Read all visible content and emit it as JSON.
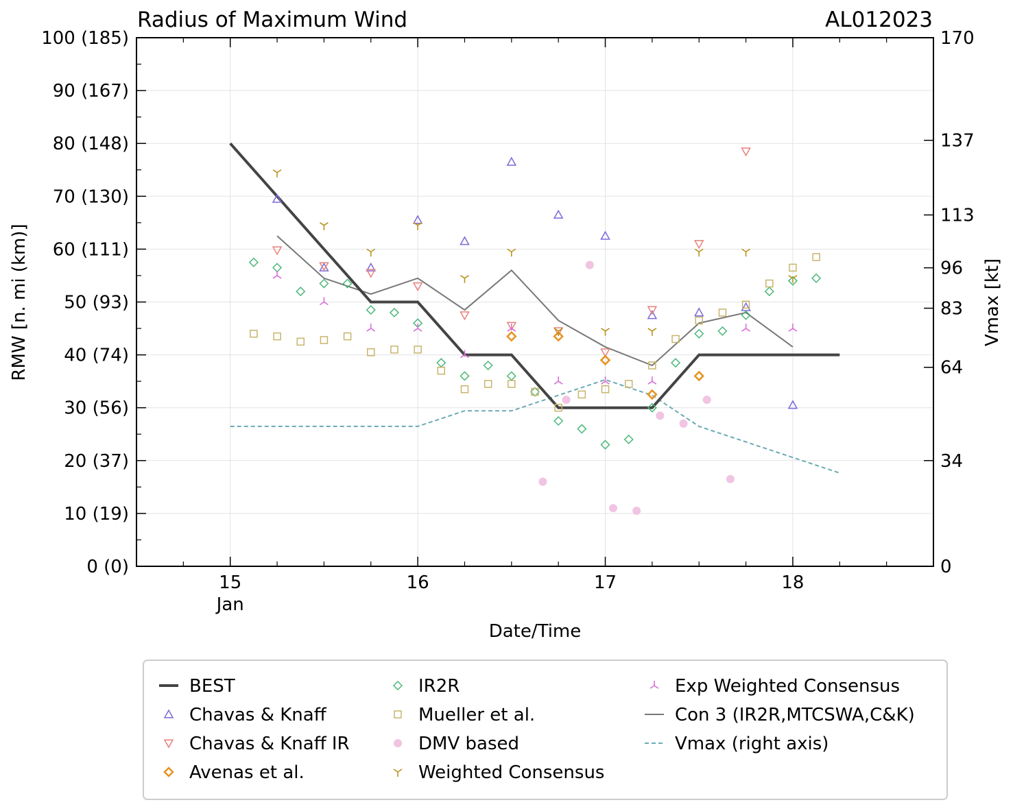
{
  "chart_data": {
    "type": "scatter",
    "title": "Radius of Maximum Wind",
    "storm_id": "AL012023",
    "xlabel": "Date/Time",
    "ylabel": "RMW [n. mi (km)]",
    "ylabel_right": "Vmax [kt]",
    "xlim": [
      14.5,
      18.75
    ],
    "ylim": [
      0,
      100
    ],
    "x_ticks": [
      {
        "value": 15,
        "label": "15",
        "sublabel": "Jan"
      },
      {
        "value": 16,
        "label": "16",
        "sublabel": ""
      },
      {
        "value": 17,
        "label": "17",
        "sublabel": ""
      },
      {
        "value": 18,
        "label": "18",
        "sublabel": ""
      }
    ],
    "y_ticks": [
      {
        "value": 0,
        "label": "0 (0)"
      },
      {
        "value": 10,
        "label": "10 (19)"
      },
      {
        "value": 20,
        "label": "20 (37)"
      },
      {
        "value": 30,
        "label": "30 (56)"
      },
      {
        "value": 40,
        "label": "40 (74)"
      },
      {
        "value": 50,
        "label": "50 (93)"
      },
      {
        "value": 60,
        "label": "60 (111)"
      },
      {
        "value": 70,
        "label": "70 (130)"
      },
      {
        "value": 80,
        "label": "80 (148)"
      },
      {
        "value": 90,
        "label": "90 (167)"
      },
      {
        "value": 100,
        "label": "100 (185)"
      }
    ],
    "right_ticks": [
      {
        "value": 0,
        "label": "0"
      },
      {
        "value": 34,
        "label": "34"
      },
      {
        "value": 64,
        "label": "64"
      },
      {
        "value": 83,
        "label": "83"
      },
      {
        "value": 96,
        "label": "96"
      },
      {
        "value": 113,
        "label": "113"
      },
      {
        "value": 137,
        "label": "137"
      },
      {
        "value": 170,
        "label": "170"
      }
    ],
    "right_lim": [
      0,
      170
    ],
    "grid": true,
    "legend_position": "bottom",
    "series": [
      {
        "name": "BEST",
        "kind": "line",
        "color": "#444444",
        "style": "solid",
        "width": 4,
        "x": [
          15.0,
          15.25,
          15.5,
          15.75,
          16.0,
          16.25,
          16.5,
          16.75,
          17.0,
          17.25,
          17.5,
          17.75,
          18.0,
          18.25
        ],
        "y": [
          80,
          70,
          60,
          50,
          50,
          40,
          40,
          30,
          30,
          30,
          40,
          40,
          40,
          40
        ]
      },
      {
        "name": "Chavas & Knaff",
        "kind": "marker",
        "marker": "triangle-up",
        "color": "#7b68d9",
        "x": [
          15.25,
          15.5,
          15.75,
          16.0,
          16.25,
          16.5,
          16.75,
          17.0,
          17.25,
          17.5,
          17.75,
          18.0
        ],
        "y": [
          69.5,
          56.5,
          56.5,
          65.5,
          61.5,
          76.5,
          66.5,
          62.5,
          47.5,
          48,
          49,
          30.5
        ]
      },
      {
        "name": "Chavas & Knaff IR",
        "kind": "marker",
        "marker": "triangle-down",
        "color": "#e8807a",
        "x": [
          15.25,
          15.5,
          15.75,
          16.0,
          16.25,
          16.5,
          16.75,
          17.0,
          17.25,
          17.5,
          17.75
        ],
        "y": [
          59.8,
          56.8,
          55.5,
          53,
          47.5,
          45.5,
          44.5,
          40.5,
          48.5,
          61,
          78.5
        ]
      },
      {
        "name": "Avenas et al.",
        "kind": "marker",
        "marker": "diamond-bold",
        "color": "#e69320",
        "x": [
          16.5,
          16.75,
          17.0,
          17.25,
          17.5
        ],
        "y": [
          43.5,
          43.5,
          39,
          32.5,
          36
        ]
      },
      {
        "name": "IR2R",
        "kind": "marker",
        "marker": "diamond",
        "color": "#4cb87a",
        "x": [
          15.125,
          15.25,
          15.375,
          15.5,
          15.625,
          15.75,
          15.875,
          16.0,
          16.125,
          16.25,
          16.375,
          16.5,
          16.625,
          16.75,
          16.875,
          17.0,
          17.125,
          17.25,
          17.375,
          17.5,
          17.625,
          17.75,
          17.875,
          18.0,
          18.125
        ],
        "y": [
          57.5,
          56.5,
          52,
          53.5,
          53.5,
          48.5,
          48,
          46,
          38.5,
          36,
          38,
          36,
          33,
          27.5,
          26,
          23,
          24,
          30,
          38.5,
          44,
          44.5,
          47.5,
          52,
          54,
          54.5
        ]
      },
      {
        "name": "Mueller et al.",
        "kind": "marker",
        "marker": "square",
        "color": "#c8b46a",
        "x": [
          15.125,
          15.25,
          15.375,
          15.5,
          15.625,
          15.75,
          15.875,
          16.0,
          16.125,
          16.25,
          16.375,
          16.5,
          16.625,
          16.75,
          16.875,
          17.0,
          17.125,
          17.25,
          17.375,
          17.5,
          17.625,
          17.75,
          17.875,
          18.0,
          18.125
        ],
        "y": [
          44,
          43.5,
          42.5,
          42.8,
          43.5,
          40.5,
          41,
          41,
          37,
          33.5,
          34.5,
          34.5,
          33,
          30,
          32.5,
          33.5,
          34.5,
          38,
          43,
          46.5,
          48,
          49.5,
          53.5,
          56.5,
          58.5
        ]
      },
      {
        "name": "DMV based",
        "kind": "marker",
        "marker": "circle-filled",
        "color": "#f0c4e2",
        "x": [
          16.667,
          16.792,
          16.917,
          17.042,
          17.167,
          17.292,
          17.417,
          17.542,
          17.667
        ],
        "y": [
          16,
          31.5,
          57,
          11,
          10.5,
          28.5,
          27,
          31.5,
          16.5
        ]
      },
      {
        "name": "Weighted Consensus",
        "kind": "marker",
        "marker": "tri-down",
        "color": "#b8921e",
        "x": [
          15.25,
          15.5,
          15.75,
          16.0,
          16.25,
          16.5,
          16.75,
          17.0,
          17.25,
          17.5,
          17.75,
          18.0
        ],
        "y": [
          74.5,
          64.5,
          59.5,
          64.5,
          54.5,
          59.5,
          44.5,
          44.5,
          44.5,
          59.5,
          59.5,
          54.5
        ]
      },
      {
        "name": "Exp Weighted Consensus",
        "kind": "marker",
        "marker": "tri-up",
        "color": "#d96ed9",
        "x": [
          15.25,
          15.5,
          15.75,
          16.0,
          16.25,
          16.5,
          16.75,
          17.0,
          17.25,
          17.75,
          18.0
        ],
        "y": [
          55,
          50,
          45,
          45,
          40,
          45,
          35,
          35,
          35,
          45,
          45
        ]
      },
      {
        "name": "Con 3 (IR2R,MTCSWA,C&K)",
        "kind": "line",
        "color": "#777777",
        "style": "solid",
        "width": 2,
        "x": [
          15.25,
          15.5,
          15.75,
          16.0,
          16.25,
          16.5,
          16.75,
          17.0,
          17.25,
          17.5,
          17.75,
          18.0
        ],
        "y": [
          62.5,
          54.5,
          51.5,
          54.5,
          48.5,
          56,
          46.5,
          41.5,
          38,
          46,
          48,
          41.5
        ]
      },
      {
        "name": "Vmax (right axis)",
        "kind": "line",
        "axis": "right",
        "color": "#6aaab3",
        "style": "dashed",
        "width": 2,
        "x": [
          15.0,
          15.25,
          15.5,
          15.75,
          16.0,
          16.25,
          16.5,
          16.75,
          17.0,
          17.25,
          17.5,
          17.75,
          18.0,
          18.25
        ],
        "y": [
          45,
          45,
          45,
          45,
          45,
          50,
          50,
          55,
          60,
          55,
          45,
          40,
          35,
          30
        ]
      }
    ]
  }
}
